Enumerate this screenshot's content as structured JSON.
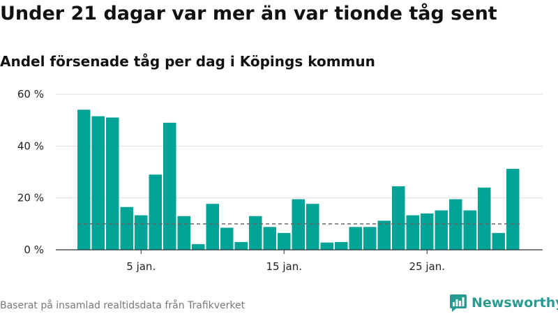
{
  "header": {
    "title": "Under 21 dagar var mer än var tionde tåg sent",
    "subtitle": "Andel försenade tåg per dag i Köpings kommun"
  },
  "footer": {
    "source": "Baserat på insamlad realtidsdata från Trafikverket",
    "brand": "Newsworthy"
  },
  "colors": {
    "bar": "#00a396",
    "reference_line": "#666666",
    "grid": "#dddddd",
    "brand": "#2a9b91"
  },
  "chart_data": {
    "type": "bar",
    "xlabel": "",
    "ylabel": "",
    "x": [
      1,
      2,
      3,
      4,
      5,
      6,
      7,
      8,
      9,
      10,
      11,
      12,
      13,
      14,
      15,
      16,
      17,
      18,
      19,
      20,
      21,
      22,
      23,
      24,
      25,
      26,
      27,
      28,
      29,
      30,
      31
    ],
    "values": [
      54,
      51.5,
      51,
      16.5,
      13.3,
      29,
      49,
      13,
      2.2,
      17.7,
      8.5,
      3,
      13,
      8.8,
      6.5,
      19.5,
      17.7,
      2.8,
      3,
      8.8,
      8.8,
      11.2,
      24.5,
      13.3,
      14,
      15.2,
      19.5,
      15.2,
      24,
      6.5,
      31.2
    ],
    "reference_line": 10,
    "ylim": [
      0,
      60
    ],
    "y_ticks": [
      {
        "value": 0,
        "label": "0 %"
      },
      {
        "value": 20,
        "label": "20 %"
      },
      {
        "value": 40,
        "label": "40 %"
      },
      {
        "value": 60,
        "label": "60 %"
      }
    ],
    "x_ticks": [
      {
        "value": 5,
        "label": "5 jan."
      },
      {
        "value": 15,
        "label": "15 jan."
      },
      {
        "value": 25,
        "label": "25 jan."
      }
    ],
    "grid": true,
    "legend": "none"
  }
}
